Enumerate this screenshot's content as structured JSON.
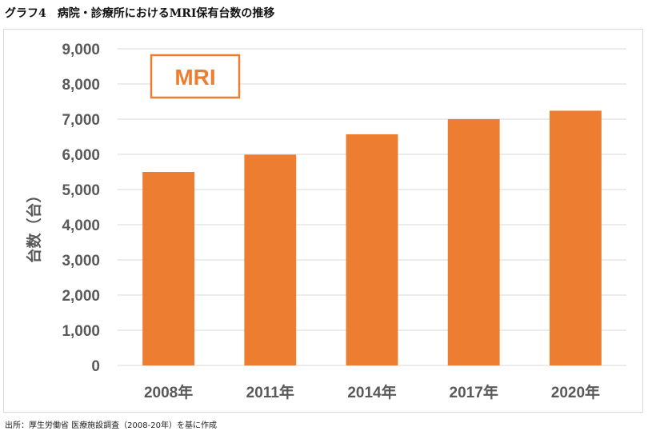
{
  "title": "グラフ4　病院・診療所におけるMRI保有台数の推移",
  "source": "出所：厚生労働省 医療施設調査（2008-20年）を基に作成",
  "colors": {
    "bar": "#ed7d31",
    "grid": "#d9d9d9",
    "axis_text": "#595959"
  },
  "chart_data": {
    "type": "bar",
    "annotation": "MRI",
    "categories": [
      "2008年",
      "2011年",
      "2014年",
      "2017年",
      "2020年"
    ],
    "values": [
      5500,
      5990,
      6570,
      7000,
      7240
    ],
    "ylabel": "台数（台）",
    "xlabel": "",
    "ylim": [
      0,
      9000
    ],
    "yticks": [
      0,
      1000,
      2000,
      3000,
      4000,
      5000,
      6000,
      7000,
      8000,
      9000
    ],
    "ytick_labels": [
      "0",
      "1,000",
      "2,000",
      "3,000",
      "4,000",
      "5,000",
      "6,000",
      "7,000",
      "8,000",
      "9,000"
    ],
    "grid": true,
    "legend": "none"
  }
}
